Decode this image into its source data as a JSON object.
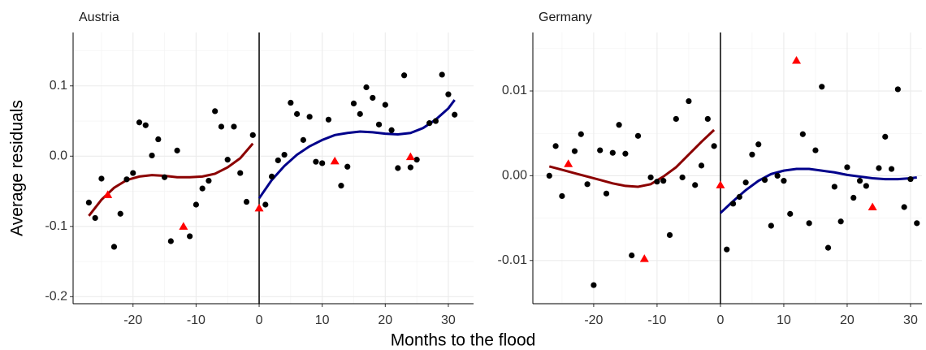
{
  "xlabel": "Months to the flood",
  "ylabel": "Average residuals",
  "chart_data": [
    {
      "type": "scatter",
      "title": "Austria",
      "xlim": [
        -29.5,
        34
      ],
      "ylim": [
        -0.21,
        0.176
      ],
      "xticks": [
        -20,
        -10,
        0,
        10,
        20,
        30
      ],
      "yticks": [
        -0.2,
        -0.1,
        {
          "value": 0,
          "label": "0.0"
        },
        0.1
      ],
      "grid": true,
      "minor_grid": true,
      "vline": 0,
      "series": [
        {
          "marker": "circle",
          "color": "#000000",
          "x": [
            -27,
            -26,
            -25,
            -23,
            -22,
            -21,
            -20,
            -19,
            -18,
            -17,
            -16,
            -15,
            -14,
            -13,
            -11,
            -10,
            -9,
            -8,
            -7,
            -6,
            -5,
            -4,
            -3,
            -2,
            -1,
            1,
            2,
            3,
            4,
            5,
            6,
            7,
            8,
            9,
            10,
            11,
            13,
            14,
            15,
            16,
            17,
            18,
            19,
            20,
            21,
            22,
            23,
            24,
            25,
            27,
            28,
            29,
            30,
            31
          ],
          "values": [
            -0.066,
            -0.088,
            -0.032,
            -0.129,
            -0.082,
            -0.033,
            -0.024,
            0.048,
            0.044,
            0.001,
            0.024,
            -0.03,
            -0.121,
            0.008,
            -0.114,
            -0.069,
            -0.046,
            -0.035,
            0.064,
            0.042,
            -0.005,
            0.042,
            -0.024,
            -0.065,
            0.03,
            -0.069,
            -0.029,
            -0.006,
            0.002,
            0.076,
            0.06,
            0.023,
            0.056,
            -0.008,
            -0.01,
            0.052,
            -0.042,
            -0.015,
            0.075,
            0.06,
            0.098,
            0.083,
            0.045,
            0.073,
            0.037,
            -0.017,
            0.115,
            -0.016,
            -0.005,
            0.047,
            0.05,
            0.116,
            0.088,
            0.059
          ]
        },
        {
          "marker": "triangle",
          "color": "#ff0000",
          "x": [
            -24,
            -12,
            0,
            12,
            24
          ],
          "values": [
            -0.055,
            -0.1,
            -0.074,
            -0.007,
            -0.001
          ]
        },
        {
          "marker": "line",
          "color": "#8b0000",
          "x": [
            -27,
            -25,
            -23,
            -21,
            -19,
            -17,
            -15,
            -13,
            -11,
            -9,
            -7,
            -5,
            -3,
            -1
          ],
          "values": [
            -0.085,
            -0.062,
            -0.045,
            -0.034,
            -0.029,
            -0.027,
            -0.028,
            -0.03,
            -0.03,
            -0.029,
            -0.025,
            -0.016,
            -0.003,
            0.018
          ]
        },
        {
          "marker": "line",
          "color": "#00008b",
          "x": [
            0,
            2,
            4,
            6,
            8,
            10,
            12,
            14,
            16,
            18,
            20,
            22,
            24,
            26,
            28,
            30,
            31
          ],
          "values": [
            -0.06,
            -0.034,
            -0.014,
            0.002,
            0.014,
            0.023,
            0.03,
            0.033,
            0.035,
            0.034,
            0.032,
            0.031,
            0.033,
            0.04,
            0.052,
            0.068,
            0.08
          ]
        }
      ]
    },
    {
      "type": "scatter",
      "title": "Germany",
      "xlim": [
        -29.6,
        31.8
      ],
      "ylim": [
        -0.0151,
        0.0169
      ],
      "xticks": [
        -20,
        -10,
        0,
        10,
        20,
        30
      ],
      "yticks": [
        -0.01,
        {
          "value": 0,
          "label": "0.00"
        },
        0.01
      ],
      "grid": true,
      "minor_grid": true,
      "vline": 0,
      "series": [
        {
          "marker": "circle",
          "color": "#000000",
          "x": [
            -27,
            -26,
            -25,
            -23,
            -22,
            -21,
            -20,
            -19,
            -18,
            -17,
            -16,
            -15,
            -14,
            -13,
            -11,
            -10,
            -9,
            -8,
            -7,
            -6,
            -5,
            -4,
            -3,
            -2,
            -1,
            1,
            2,
            3,
            4,
            5,
            6,
            7,
            8,
            9,
            10,
            11,
            13,
            14,
            15,
            16,
            17,
            18,
            19,
            20,
            21,
            22,
            23,
            25,
            26,
            27,
            28,
            29,
            30,
            31
          ],
          "values": [
            0,
            0.0035,
            -0.0024,
            0.0029,
            0.0049,
            -0.001,
            -0.0129,
            0.003,
            -0.0021,
            0.0027,
            0.006,
            0.0026,
            -0.0094,
            0.0047,
            -0.0002,
            -0.0007,
            -0.0006,
            -0.007,
            0.0067,
            -0.0002,
            0.0088,
            -0.0011,
            0.0012,
            0.0067,
            0.0035,
            -0.0087,
            -0.0033,
            -0.0025,
            -0.0008,
            0.0025,
            0.0037,
            -0.0005,
            -0.0059,
            0,
            -0.0006,
            -0.0045,
            0.0049,
            -0.0056,
            0.003,
            0.0105,
            -0.0085,
            -0.0013,
            -0.0054,
            0.001,
            -0.0026,
            -0.0006,
            -0.0012,
            0.0009,
            0.0046,
            0.0008,
            0.0102,
            -0.0037,
            -0.0004,
            -0.0056
          ]
        },
        {
          "marker": "triangle",
          "color": "#ff0000",
          "x": [
            -24,
            -12,
            0,
            12,
            24
          ],
          "values": [
            0.0014,
            -0.0098,
            -0.0011,
            0.0136,
            -0.0037
          ]
        },
        {
          "marker": "line",
          "color": "#8b0000",
          "x": [
            -27,
            -25,
            -23,
            -21,
            -19,
            -17,
            -15,
            -13,
            -11,
            -9,
            -7,
            -5,
            -3,
            -1
          ],
          "values": [
            0.0011,
            0.0007,
            0.0003,
            -0.0001,
            -0.0005,
            -0.0009,
            -0.0012,
            -0.0013,
            -0.001,
            -0.0001,
            0.001,
            0.0025,
            0.004,
            0.0054
          ]
        },
        {
          "marker": "line",
          "color": "#00008b",
          "x": [
            0,
            2,
            4,
            6,
            8,
            10,
            12,
            14,
            16,
            18,
            20,
            22,
            24,
            26,
            28,
            30,
            31
          ],
          "values": [
            -0.0044,
            -0.003,
            -0.0017,
            -0.0006,
            0.0002,
            0.0006,
            0.0008,
            0.0008,
            0.0006,
            0.0004,
            0.0001,
            -0.0001,
            -0.0003,
            -0.0004,
            -0.0004,
            -0.0003,
            -0.0002
          ]
        }
      ]
    }
  ]
}
